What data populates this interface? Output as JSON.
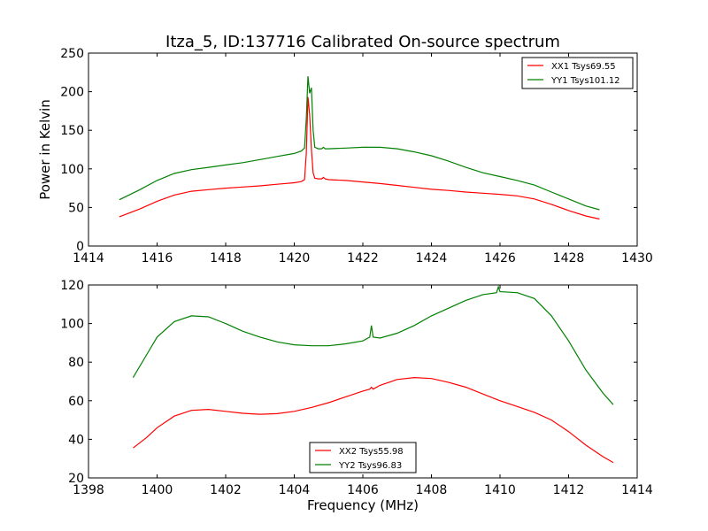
{
  "title": "Itza_5, ID:137716 Calibrated On-source spectrum",
  "chart_data": [
    {
      "type": "line",
      "ylabel": "Power in Kelvin",
      "xlabel": "",
      "xlim": [
        1414,
        1430
      ],
      "ylim": [
        0,
        250
      ],
      "xticks": [
        1414,
        1416,
        1418,
        1420,
        1422,
        1424,
        1426,
        1428,
        1430
      ],
      "yticks": [
        0,
        50,
        100,
        150,
        200,
        250
      ],
      "grid": false,
      "legend_position": "top-right",
      "series": [
        {
          "name": "XX1 Tsys69.55",
          "color": "#ff0000",
          "x": [
            1414.9,
            1415.5,
            1416,
            1416.5,
            1417,
            1417.5,
            1418,
            1418.5,
            1419,
            1419.5,
            1420,
            1420.2,
            1420.3,
            1420.35,
            1420.4,
            1420.45,
            1420.5,
            1420.55,
            1420.6,
            1420.7,
            1420.8,
            1420.85,
            1420.9,
            1421,
            1421.5,
            1422,
            1422.5,
            1423,
            1423.5,
            1424,
            1424.5,
            1425,
            1425.5,
            1426,
            1426.5,
            1427,
            1427.5,
            1428,
            1428.5,
            1428.9
          ],
          "values": [
            38,
            48,
            58,
            66,
            71,
            73,
            75,
            76.5,
            78,
            80,
            82,
            83.5,
            86,
            120,
            193,
            170,
            125,
            95,
            88,
            87,
            87,
            89,
            87,
            86,
            85,
            83,
            81,
            78.5,
            76,
            73.5,
            72,
            70,
            68.5,
            67,
            65,
            61,
            54,
            46,
            39,
            35
          ]
        },
        {
          "name": "YY1 Tsys101.12",
          "color": "#008000",
          "x": [
            1414.9,
            1415.5,
            1416,
            1416.5,
            1417,
            1417.5,
            1418,
            1418.5,
            1419,
            1419.5,
            1420,
            1420.2,
            1420.3,
            1420.35,
            1420.4,
            1420.45,
            1420.5,
            1420.55,
            1420.6,
            1420.7,
            1420.8,
            1420.85,
            1420.9,
            1421,
            1421.5,
            1422,
            1422.5,
            1423,
            1423.5,
            1424,
            1424.5,
            1425,
            1425.5,
            1426,
            1426.5,
            1427,
            1427.5,
            1428,
            1428.5,
            1428.9
          ],
          "values": [
            60,
            73,
            85,
            94,
            99,
            102,
            105,
            108,
            112,
            116,
            120,
            123,
            127,
            165,
            220,
            198,
            205,
            150,
            128,
            126,
            126,
            128,
            126,
            126,
            127,
            128,
            128,
            126,
            122,
            117,
            110,
            102,
            95,
            90,
            85,
            79,
            70,
            61,
            52,
            47
          ]
        }
      ]
    },
    {
      "type": "line",
      "ylabel": "",
      "xlabel": "Frequency (MHz)",
      "xlim": [
        1398,
        1414
      ],
      "ylim": [
        20,
        120
      ],
      "xticks": [
        1398,
        1400,
        1402,
        1404,
        1406,
        1408,
        1410,
        1412,
        1414
      ],
      "yticks": [
        20,
        40,
        60,
        80,
        100,
        120
      ],
      "grid": false,
      "legend_position": "bottom-center",
      "series": [
        {
          "name": "XX2 Tsys55.98",
          "color": "#ff0000",
          "x": [
            1399.3,
            1399.7,
            1400,
            1400.5,
            1401,
            1401.5,
            1402,
            1402.5,
            1403,
            1403.5,
            1404,
            1404.5,
            1405,
            1405.5,
            1406,
            1406.2,
            1406.25,
            1406.3,
            1406.5,
            1407,
            1407.5,
            1408,
            1408.5,
            1409,
            1409.5,
            1410,
            1410.5,
            1411,
            1411.5,
            1412,
            1412.5,
            1413,
            1413.3
          ],
          "values": [
            35.5,
            41,
            46,
            52,
            55,
            55.5,
            54.5,
            53.5,
            53,
            53.3,
            54.5,
            56.5,
            59,
            62,
            65,
            66,
            67,
            66,
            68,
            71,
            72,
            71.5,
            69.5,
            67,
            63.5,
            60,
            57,
            54,
            50,
            44,
            37,
            31,
            28
          ]
        },
        {
          "name": "YY2 Tsys96.83",
          "color": "#008000",
          "x": [
            1399.3,
            1399.7,
            1400,
            1400.5,
            1401,
            1401.5,
            1402,
            1402.5,
            1403,
            1403.5,
            1404,
            1404.5,
            1405,
            1405.5,
            1406,
            1406.2,
            1406.25,
            1406.3,
            1406.5,
            1407,
            1407.5,
            1408,
            1408.5,
            1409,
            1409.5,
            1409.9,
            1409.95,
            1410,
            1410.5,
            1411,
            1411.5,
            1412,
            1412.5,
            1413,
            1413.3
          ],
          "values": [
            72,
            84,
            93,
            101,
            104,
            103.5,
            100,
            96,
            93,
            90.5,
            89,
            88.5,
            88.5,
            89.5,
            91,
            93,
            99,
            93,
            92.5,
            95,
            99,
            104,
            108,
            112,
            115,
            116,
            119,
            116.5,
            116,
            113,
            104,
            91,
            76,
            64,
            58
          ]
        }
      ]
    }
  ]
}
